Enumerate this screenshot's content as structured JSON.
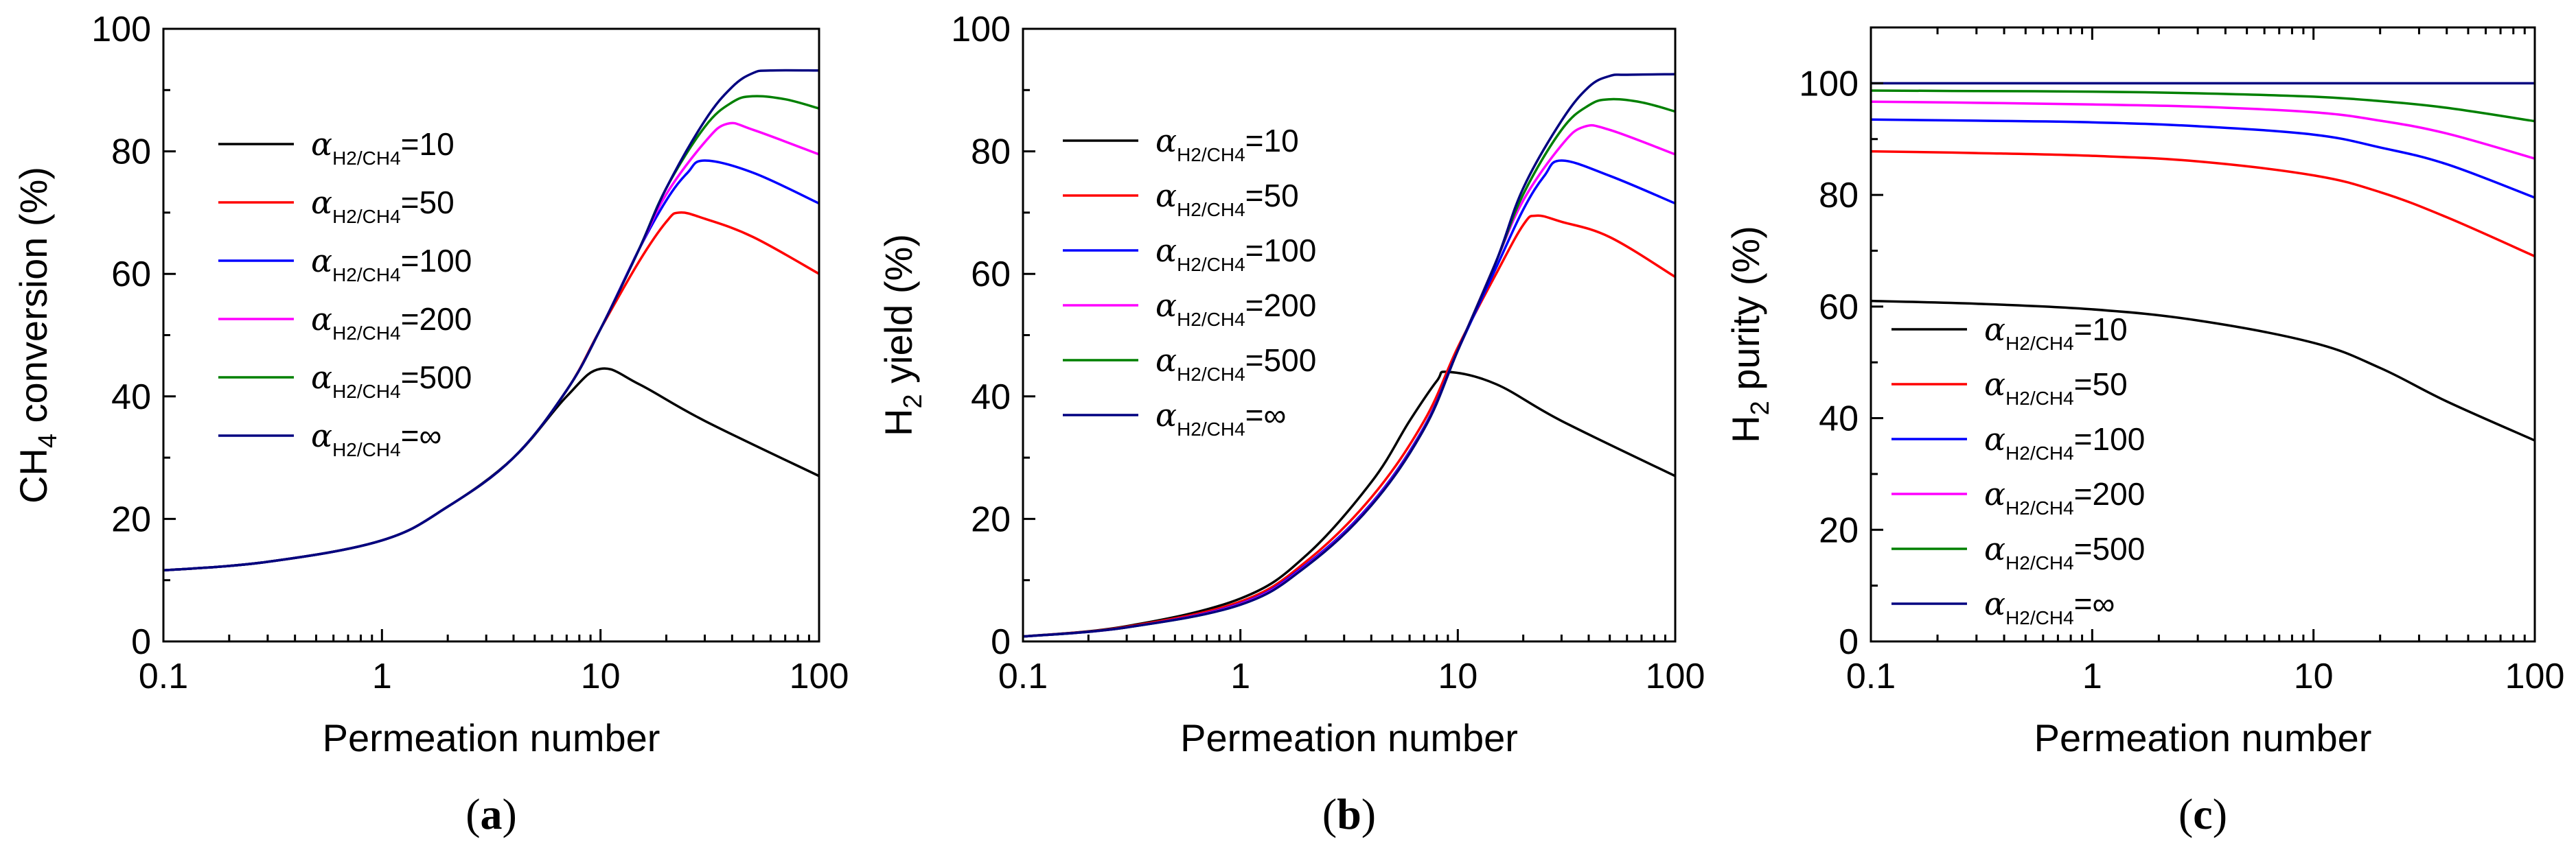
{
  "chart_data": [
    {
      "type": "line",
      "panel": "a",
      "xscale": "log",
      "xlim": [
        0.1,
        100
      ],
      "ylim": [
        0,
        100
      ],
      "xticks": [
        0.1,
        1,
        10,
        100
      ],
      "xtick_labels": [
        "0.1",
        "1",
        "10",
        "100"
      ],
      "yticks": [
        0,
        20,
        40,
        60,
        80,
        100
      ],
      "ytick_labels": [
        "0",
        "20",
        "40",
        "60",
        "80",
        "100"
      ],
      "xlabel": "Permeation number",
      "ylabel": "CH4 conversion (%)",
      "ylabel_parts": {
        "pre": "CH",
        "sub": "4",
        "post": " conversion (%)"
      },
      "panel_label": {
        "open": "(",
        "letter": "a",
        "close": ")"
      },
      "legend_position": "upper-left",
      "series": [
        {
          "name": "αH2/CH4=10",
          "alpha": "10",
          "color": "#000000",
          "x": [
            0.1,
            0.3,
            1,
            2,
            4,
            7,
            10,
            15,
            30,
            100
          ],
          "y": [
            11.6,
            13,
            16.5,
            22,
            30,
            40,
            44.5,
            42,
            36,
            27
          ]
        },
        {
          "name": "αH2/CH4=50",
          "alpha": "50",
          "color": "#ff0000",
          "x": [
            0.1,
            0.3,
            1,
            2,
            4,
            7,
            10,
            15,
            20,
            23,
            30,
            50,
            100
          ],
          "y": [
            11.6,
            13,
            16.5,
            22,
            30,
            41,
            51,
            62,
            68.5,
            70,
            69,
            66,
            60
          ]
        },
        {
          "name": "αH2/CH4=100",
          "alpha": "100",
          "color": "#0000ff",
          "x": [
            0.1,
            0.3,
            1,
            2,
            4,
            7,
            10,
            15,
            20,
            25,
            30,
            50,
            100
          ],
          "y": [
            11.6,
            13,
            16.5,
            22,
            30,
            41,
            51,
            64,
            72,
            76.5,
            78.5,
            76.5,
            71.5
          ]
        },
        {
          "name": "αH2/CH4=200",
          "alpha": "200",
          "color": "#ff00ff",
          "x": [
            0.1,
            0.3,
            1,
            2,
            4,
            7,
            10,
            15,
            20,
            30,
            38,
            50,
            100
          ],
          "y": [
            11.6,
            13,
            16.5,
            22,
            30,
            41,
            51,
            64,
            73,
            81.5,
            84.5,
            83.5,
            79.5
          ]
        },
        {
          "name": "αH2/CH4=500",
          "alpha": "500",
          "color": "#008000",
          "x": [
            0.1,
            0.3,
            1,
            2,
            4,
            7,
            10,
            15,
            20,
            30,
            40,
            50,
            70,
            100
          ],
          "y": [
            11.6,
            13,
            16.5,
            22,
            30,
            41,
            51,
            64,
            74,
            84,
            88,
            89,
            88.5,
            87
          ]
        },
        {
          "name": "αH2/CH4=∞",
          "alpha": "∞",
          "color": "#000080",
          "x": [
            0.1,
            0.3,
            1,
            2,
            4,
            7,
            10,
            15,
            20,
            30,
            40,
            50,
            60,
            100
          ],
          "y": [
            11.6,
            13,
            16.5,
            22,
            30,
            41,
            51,
            64,
            74,
            85,
            90.5,
            92.8,
            93.2,
            93.2
          ]
        }
      ]
    },
    {
      "type": "line",
      "panel": "b",
      "xscale": "log",
      "xlim": [
        0.1,
        100
      ],
      "ylim": [
        0,
        100
      ],
      "xticks": [
        0.1,
        1,
        10,
        100
      ],
      "xtick_labels": [
        "0.1",
        "1",
        "10",
        "100"
      ],
      "yticks": [
        0,
        20,
        40,
        60,
        80,
        100
      ],
      "ytick_labels": [
        "0",
        "20",
        "40",
        "60",
        "80",
        "100"
      ],
      "xlabel": "Permeation number",
      "ylabel": "H2 yield (%)",
      "ylabel_parts": {
        "pre": "H",
        "sub": "2",
        "post": " yield (%)"
      },
      "panel_label": {
        "open": "(",
        "letter": "b",
        "close": ")"
      },
      "legend_position": "upper-left",
      "series": [
        {
          "name": "αH2/CH4=10",
          "alpha": "10",
          "color": "#000000",
          "x": [
            0.1,
            0.3,
            1,
            2,
            4,
            6,
            8,
            9,
            15,
            30,
            100
          ],
          "y": [
            0.8,
            2.5,
            7,
            14,
            26,
            36,
            42.5,
            44,
            42,
            36,
            27
          ]
        },
        {
          "name": "αH2/CH4=50",
          "alpha": "50",
          "color": "#ff0000",
          "x": [
            0.1,
            0.3,
            1,
            2,
            4,
            7,
            10,
            15,
            20,
            23,
            30,
            50,
            100
          ],
          "y": [
            0.8,
            2.4,
            6.5,
            13,
            23.5,
            36,
            48,
            60,
            68,
            69.5,
            68.5,
            66,
            59.5
          ]
        },
        {
          "name": "αH2/CH4=100",
          "alpha": "100",
          "color": "#0000ff",
          "x": [
            0.1,
            0.3,
            1,
            2,
            4,
            7,
            10,
            15,
            20,
            25,
            30,
            50,
            100
          ],
          "y": [
            0.8,
            2.3,
            6.2,
            12.5,
            22.5,
            35,
            47.5,
            61,
            70.5,
            76,
            78.5,
            76,
            71.5
          ]
        },
        {
          "name": "αH2/CH4=200",
          "alpha": "200",
          "color": "#ff00ff",
          "x": [
            0.1,
            0.3,
            1,
            2,
            4,
            7,
            10,
            15,
            20,
            30,
            38,
            50,
            100
          ],
          "y": [
            0.8,
            2.3,
            6.1,
            12.3,
            22.3,
            34.8,
            47.5,
            62,
            72,
            81,
            84,
            83.5,
            79.5
          ]
        },
        {
          "name": "αH2/CH4=500",
          "alpha": "500",
          "color": "#008000",
          "x": [
            0.1,
            0.3,
            1,
            2,
            4,
            7,
            10,
            15,
            20,
            30,
            40,
            50,
            70,
            100
          ],
          "y": [
            0.8,
            2.3,
            6,
            12.2,
            22.2,
            34.7,
            47.5,
            62,
            73,
            83.5,
            87.5,
            88.5,
            88,
            86.5
          ]
        },
        {
          "name": "αH2/CH4=∞",
          "alpha": "∞",
          "color": "#000080",
          "x": [
            0.1,
            0.3,
            1,
            2,
            4,
            7,
            10,
            15,
            20,
            30,
            40,
            50,
            60,
            100
          ],
          "y": [
            0.8,
            2.3,
            6,
            12.2,
            22.2,
            34.7,
            47.5,
            62,
            74,
            85,
            90.5,
            92.3,
            92.5,
            92.6
          ]
        }
      ]
    },
    {
      "type": "line",
      "panel": "c",
      "xscale": "log",
      "xlim": [
        0.1,
        100
      ],
      "ylim": [
        0,
        110
      ],
      "xticks": [
        0.1,
        1,
        10,
        100
      ],
      "xtick_labels": [
        "0.1",
        "1",
        "10",
        "100"
      ],
      "yticks": [
        0,
        20,
        40,
        60,
        80,
        100
      ],
      "ytick_labels": [
        "0",
        "20",
        "40",
        "60",
        "80",
        "100"
      ],
      "xlabel": "Permeation number",
      "ylabel": "H2 purity (%)",
      "ylabel_parts": {
        "pre": "H",
        "sub": "2",
        "post": " purity (%)"
      },
      "panel_label": {
        "open": "(",
        "letter": "c",
        "close": ")"
      },
      "legend_position": "lower-left",
      "series": [
        {
          "name": "αH2/CH4=10",
          "alpha": "10",
          "color": "#000000",
          "x": [
            0.1,
            0.3,
            1,
            3,
            10,
            20,
            40,
            100
          ],
          "y": [
            61,
            60.5,
            59.5,
            57.5,
            53.5,
            49,
            43,
            36
          ]
        },
        {
          "name": "αH2/CH4=50",
          "alpha": "50",
          "color": "#ff0000",
          "x": [
            0.1,
            0.3,
            1,
            3,
            10,
            20,
            40,
            100
          ],
          "y": [
            87.8,
            87.5,
            87,
            86,
            83.5,
            80.5,
            76,
            69
          ]
        },
        {
          "name": "αH2/CH4=100",
          "alpha": "100",
          "color": "#0000ff",
          "x": [
            0.1,
            0.3,
            1,
            3,
            10,
            20,
            40,
            100
          ],
          "y": [
            93.5,
            93.3,
            93,
            92.3,
            90.8,
            88.5,
            85.5,
            79.5
          ]
        },
        {
          "name": "αH2/CH4=200",
          "alpha": "200",
          "color": "#ff00ff",
          "x": [
            0.1,
            0.3,
            1,
            3,
            10,
            20,
            40,
            100
          ],
          "y": [
            96.7,
            96.5,
            96.2,
            95.8,
            94.8,
            93.3,
            91,
            86.5
          ]
        },
        {
          "name": "αH2/CH4=500",
          "alpha": "500",
          "color": "#008000",
          "x": [
            0.1,
            0.3,
            1,
            3,
            10,
            20,
            40,
            100
          ],
          "y": [
            98.7,
            98.6,
            98.5,
            98.2,
            97.6,
            96.8,
            95.6,
            93.2
          ]
        },
        {
          "name": "αH2/CH4=∞",
          "alpha": "∞",
          "color": "#000080",
          "x": [
            0.1,
            1,
            10,
            100
          ],
          "y": [
            100,
            100,
            100,
            100
          ]
        }
      ]
    }
  ],
  "legend_subscript": "H2/CH4"
}
